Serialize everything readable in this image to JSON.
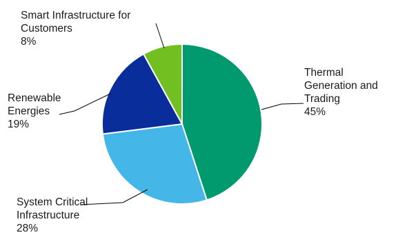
{
  "chart_data": {
    "type": "pie",
    "title": "",
    "start_angle_deg": 0,
    "direction": "clockwise",
    "slices": [
      {
        "name": "Thermal Generation and Trading",
        "value": 45,
        "pct_label": "45%",
        "label_lines": [
          "Thermal",
          "Generation and",
          "Trading",
          "45%"
        ],
        "color": "#009a6e"
      },
      {
        "name": "System Critical Infrastructure",
        "value": 28,
        "pct_label": "28%",
        "label_lines": [
          "System Critical",
          "Infrastructure",
          "28%"
        ],
        "color": "#45b6e8"
      },
      {
        "name": "Renewable Energies",
        "value": 19,
        "pct_label": "19%",
        "label_lines": [
          "Renewable",
          "Energies",
          "19%"
        ],
        "color": "#0a2d9c"
      },
      {
        "name": "Smart Infrastructure for Customers",
        "value": 8,
        "pct_label": "8%",
        "label_lines": [
          "Smart Infrastructure for",
          "Customers",
          "8%"
        ],
        "color": "#72bf21"
      }
    ]
  }
}
